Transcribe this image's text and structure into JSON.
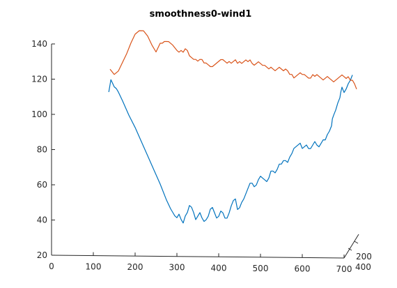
{
  "chart_data": {
    "type": "line",
    "title": "smoothness0-wind1",
    "xlabel": "",
    "ylabel": "",
    "xlim": [
      0,
      700
    ],
    "ylim": [
      20,
      140
    ],
    "x_ticks": [
      0,
      100,
      200,
      300,
      400,
      500,
      600,
      700
    ],
    "y_ticks": [
      20,
      40,
      60,
      80,
      100,
      120,
      140
    ],
    "depth_ticks": [
      200,
      400
    ],
    "grid": false,
    "series": [
      {
        "color": "#0072BD",
        "x": [
          137,
          142,
          148,
          150,
          155,
          160,
          170,
          185,
          200,
          215,
          230,
          245,
          260,
          275,
          285,
          290,
          295,
          300,
          305,
          310,
          315,
          320,
          325,
          330,
          335,
          340,
          345,
          350,
          355,
          360,
          365,
          370,
          375,
          380,
          385,
          390,
          395,
          400,
          405,
          410,
          415,
          420,
          425,
          430,
          435,
          440,
          445,
          450,
          455,
          460,
          465,
          470,
          475,
          480,
          485,
          490,
          495,
          500,
          505,
          510,
          515,
          520,
          525,
          530,
          535,
          540,
          545,
          550,
          555,
          560,
          565,
          570,
          575,
          580,
          585,
          590,
          595,
          600,
          605,
          610,
          615,
          620,
          625,
          630,
          635,
          640,
          645,
          650,
          655,
          660,
          665,
          670,
          672,
          675,
          680,
          685,
          690,
          692,
          695,
          700,
          705,
          710,
          715,
          720
        ],
        "y": [
          113,
          120,
          117,
          116,
          115,
          113,
          108,
          100,
          93,
          85,
          77,
          69,
          61,
          52,
          47,
          45,
          43,
          42,
          44,
          41,
          39,
          43,
          45,
          49,
          48,
          45,
          41,
          43,
          45,
          42,
          40,
          41,
          43,
          47,
          48,
          45,
          42,
          43,
          46,
          45,
          42,
          42,
          45,
          49,
          52,
          53,
          47,
          48,
          51,
          53,
          56,
          59,
          62,
          62,
          60,
          61,
          64,
          66,
          65,
          64,
          63,
          65,
          69,
          69,
          68,
          70,
          73,
          73,
          75,
          75,
          74,
          77,
          79,
          82,
          83,
          84,
          85,
          82,
          83,
          84,
          82,
          82,
          84,
          86,
          84,
          83,
          85,
          87,
          87,
          90,
          92,
          95,
          99,
          101,
          104,
          108,
          111,
          114,
          117,
          114,
          116,
          119,
          121,
          124
        ]
      },
      {
        "color": "#D95319",
        "x": [
          140,
          150,
          160,
          170,
          180,
          190,
          200,
          210,
          220,
          230,
          240,
          250,
          260,
          265,
          270,
          275,
          280,
          290,
          300,
          305,
          310,
          315,
          320,
          325,
          330,
          335,
          340,
          345,
          350,
          355,
          360,
          365,
          370,
          375,
          380,
          385,
          390,
          395,
          400,
          405,
          410,
          415,
          420,
          425,
          430,
          435,
          440,
          445,
          450,
          455,
          460,
          465,
          470,
          475,
          480,
          485,
          490,
          495,
          500,
          505,
          510,
          515,
          520,
          525,
          530,
          535,
          540,
          545,
          550,
          555,
          560,
          565,
          570,
          575,
          580,
          585,
          590,
          595,
          600,
          605,
          610,
          615,
          620,
          625,
          630,
          635,
          640,
          645,
          650,
          655,
          660,
          665,
          670,
          675,
          680,
          685,
          690,
          695,
          700,
          705,
          710,
          715,
          720,
          725,
          730
        ],
        "y": [
          126,
          123,
          125,
          130,
          135,
          141,
          146,
          148,
          148,
          145,
          140,
          136,
          141,
          141,
          142,
          142,
          142,
          140,
          137,
          136,
          137,
          136,
          138,
          137,
          134,
          133,
          132,
          132,
          131,
          132,
          132,
          130,
          130,
          129,
          128,
          128,
          129,
          130,
          131,
          132,
          132,
          131,
          130,
          131,
          130,
          131,
          132,
          130,
          131,
          130,
          131,
          132,
          131,
          132,
          130,
          129,
          130,
          131,
          130,
          129,
          129,
          128,
          127,
          128,
          127,
          126,
          127,
          128,
          127,
          126,
          127,
          126,
          124,
          124,
          122,
          123,
          124,
          125,
          124,
          124,
          123,
          122,
          122,
          124,
          123,
          124,
          123,
          122,
          121,
          122,
          123,
          122,
          121,
          120,
          121,
          122,
          123,
          124,
          123,
          122,
          123,
          121,
          121,
          119,
          116
        ]
      }
    ]
  }
}
